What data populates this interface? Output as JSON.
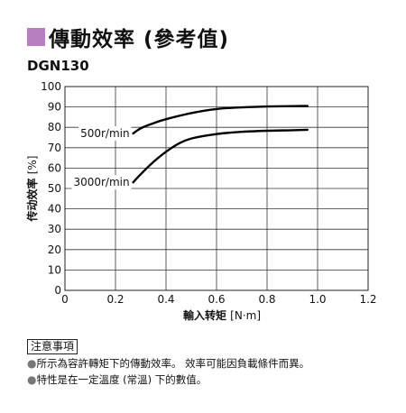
{
  "heading": {
    "title": "傳動效率 (參考值)",
    "model": "DGN130",
    "accent_color": "#b77fbf"
  },
  "chart_data": {
    "type": "line",
    "title": "",
    "xlabel": "輸入转矩",
    "xunit": "[N·m]",
    "ylabel": "传动效率",
    "yunit": "[%]",
    "xlim": [
      0,
      1.2
    ],
    "ylim": [
      0,
      100
    ],
    "xticks": [
      "0",
      "0.2",
      "0.4",
      "0.6",
      "0.8",
      "1.0",
      "1.2"
    ],
    "yticks": [
      "0",
      "10",
      "20",
      "30",
      "40",
      "50",
      "60",
      "70",
      "80",
      "90",
      "100"
    ],
    "grid": true,
    "series": [
      {
        "name": "500r/min",
        "x": [
          0.27,
          0.3,
          0.35,
          0.4,
          0.5,
          0.6,
          0.7,
          0.8,
          0.9,
          0.96
        ],
        "y": [
          77,
          79.5,
          82,
          84,
          87,
          89,
          89.8,
          90.2,
          90.4,
          90.5
        ]
      },
      {
        "name": "3000r/min",
        "x": [
          0.27,
          0.3,
          0.35,
          0.4,
          0.45,
          0.5,
          0.6,
          0.7,
          0.8,
          0.9,
          0.96
        ],
        "y": [
          53,
          57,
          63,
          68,
          72,
          74.5,
          76.7,
          77.8,
          78.3,
          78.6,
          78.8
        ]
      }
    ]
  },
  "notes": {
    "header": "注意事項",
    "lines": [
      "所示為容許轉矩下的傳動效率。 效率可能因負載條件而異。",
      "特性是在一定溫度 (常溫) 下的數值。"
    ]
  }
}
